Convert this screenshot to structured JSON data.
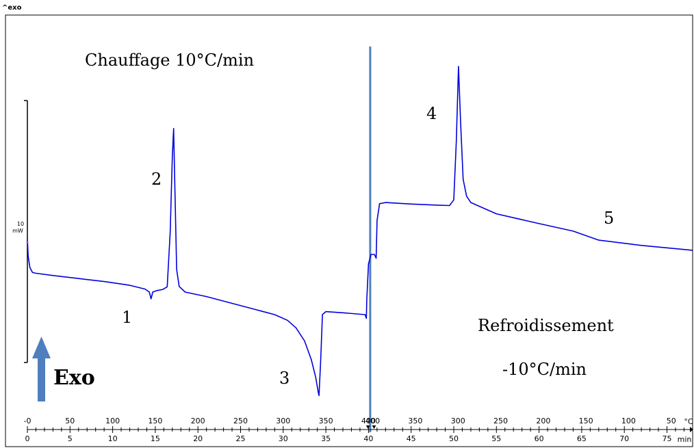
{
  "corner_label": "^exo",
  "chart_data": {
    "type": "line",
    "title": "",
    "xlabel": "min",
    "temperature_unit": "°C",
    "scale_bar": {
      "value": "10",
      "unit": "mW"
    },
    "x_time_ticks": [
      0,
      5,
      10,
      15,
      20,
      25,
      30,
      35,
      40,
      45,
      50,
      55,
      60,
      65,
      70,
      75
    ],
    "x_temp_ticks": [
      {
        "t": 0,
        "label": "-0"
      },
      {
        "t": 5,
        "label": "50"
      },
      {
        "t": 10,
        "label": "100"
      },
      {
        "t": 15,
        "label": "150"
      },
      {
        "t": 20,
        "label": "200"
      },
      {
        "t": 25,
        "label": "250"
      },
      {
        "t": 30,
        "label": "300"
      },
      {
        "t": 35,
        "label": "350"
      },
      {
        "t": 40,
        "label": "400"
      },
      {
        "t": 40.5,
        "label": "400"
      },
      {
        "t": 45.5,
        "label": "350"
      },
      {
        "t": 50.5,
        "label": "300"
      },
      {
        "t": 55.5,
        "label": "250"
      },
      {
        "t": 60.5,
        "label": "200"
      },
      {
        "t": 65.5,
        "label": "150"
      },
      {
        "t": 70.5,
        "label": "100"
      },
      {
        "t": 75.5,
        "label": "50"
      }
    ],
    "segment_divider_min": 40.2,
    "series": [
      {
        "color": "#0000dd",
        "points": [
          [
            0.0,
            1.0
          ],
          [
            0.1,
            0.55
          ],
          [
            0.3,
            0.25
          ],
          [
            0.6,
            0.12
          ],
          [
            1.0,
            0.1
          ],
          [
            3,
            0.04
          ],
          [
            6,
            -0.04
          ],
          [
            9,
            -0.12
          ],
          [
            12,
            -0.22
          ],
          [
            13.8,
            -0.32
          ],
          [
            14.3,
            -0.4
          ],
          [
            14.5,
            -0.58
          ],
          [
            14.7,
            -0.4
          ],
          [
            15.2,
            -0.36
          ],
          [
            15.9,
            -0.33
          ],
          [
            16.4,
            -0.26
          ],
          [
            16.75,
            1.2
          ],
          [
            17.0,
            3.2
          ],
          [
            17.15,
            3.95
          ],
          [
            17.3,
            2.3
          ],
          [
            17.5,
            0.2
          ],
          [
            17.8,
            -0.25
          ],
          [
            18.5,
            -0.4
          ],
          [
            21,
            -0.52
          ],
          [
            24,
            -0.7
          ],
          [
            27,
            -0.88
          ],
          [
            29,
            -1.0
          ],
          [
            30.5,
            -1.15
          ],
          [
            31.5,
            -1.35
          ],
          [
            32.5,
            -1.7
          ],
          [
            33.3,
            -2.2
          ],
          [
            33.8,
            -2.65
          ],
          [
            34.1,
            -3.05
          ],
          [
            34.2,
            -3.15
          ],
          [
            34.4,
            -2.2
          ],
          [
            34.6,
            -1.0
          ],
          [
            35.0,
            -0.92
          ],
          [
            37,
            -0.95
          ],
          [
            39.6,
            -1.0
          ],
          [
            39.75,
            -1.1
          ],
          [
            39.8,
            -0.6
          ],
          [
            40.0,
            0.35
          ],
          [
            40.3,
            0.6
          ],
          [
            40.7,
            0.6
          ],
          [
            40.9,
            0.5
          ],
          [
            41.0,
            1.5
          ],
          [
            41.3,
            1.95
          ],
          [
            42,
            1.98
          ],
          [
            45,
            1.94
          ],
          [
            48,
            1.91
          ],
          [
            49.5,
            1.9
          ],
          [
            50.0,
            2.05
          ],
          [
            50.3,
            3.6
          ],
          [
            50.55,
            5.6
          ],
          [
            50.8,
            4.1
          ],
          [
            51.1,
            2.6
          ],
          [
            51.5,
            2.15
          ],
          [
            52,
            1.98
          ],
          [
            55,
            1.68
          ],
          [
            60,
            1.42
          ],
          [
            64,
            1.22
          ],
          [
            67,
            0.98
          ],
          [
            72,
            0.84
          ],
          [
            78,
            0.71
          ]
        ]
      }
    ],
    "annotations": [
      {
        "id": "heat",
        "text": "Chauffage 10°C/min"
      },
      {
        "id": "n1",
        "text": "1"
      },
      {
        "id": "n2",
        "text": "2"
      },
      {
        "id": "n3",
        "text": "3"
      },
      {
        "id": "n4",
        "text": "4"
      },
      {
        "id": "n5",
        "text": "5"
      },
      {
        "id": "cool1",
        "text": "Refroidissement"
      },
      {
        "id": "cool2",
        "text": "-10°C/min"
      },
      {
        "id": "exo",
        "text": "Exo"
      }
    ]
  }
}
